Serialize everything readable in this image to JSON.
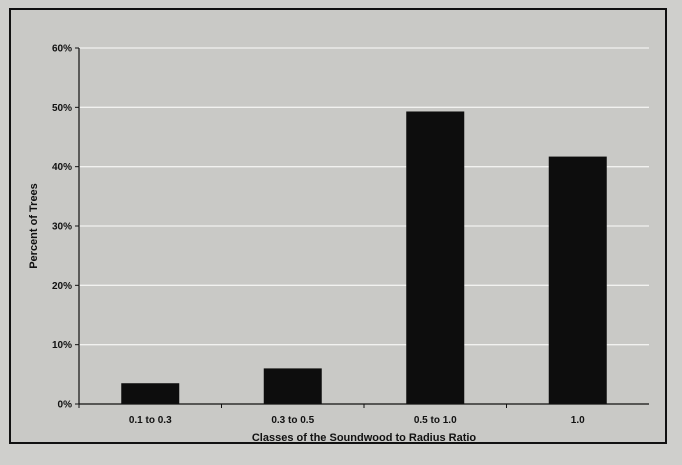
{
  "chart_data": {
    "type": "bar",
    "title": "",
    "xlabel": "Classes of the Soundwood to Radius Ratio",
    "ylabel": "Percent of Trees",
    "categories": [
      "0.1 to 0.3",
      "0.3 to 0.5",
      "0.5 to 1.0",
      "1.0"
    ],
    "values": [
      3.5,
      6,
      49.3,
      41.7
    ],
    "ylim": [
      0,
      60
    ],
    "yticks": [
      0,
      10,
      20,
      30,
      40,
      50,
      60
    ],
    "ytick_labels": [
      "0%",
      "10%",
      "20%",
      "30%",
      "40%",
      "50%",
      "60%"
    ],
    "grid": true,
    "legend": "none",
    "bar_color": "#0d0d0d",
    "grid_color": "#f2f2f0"
  }
}
